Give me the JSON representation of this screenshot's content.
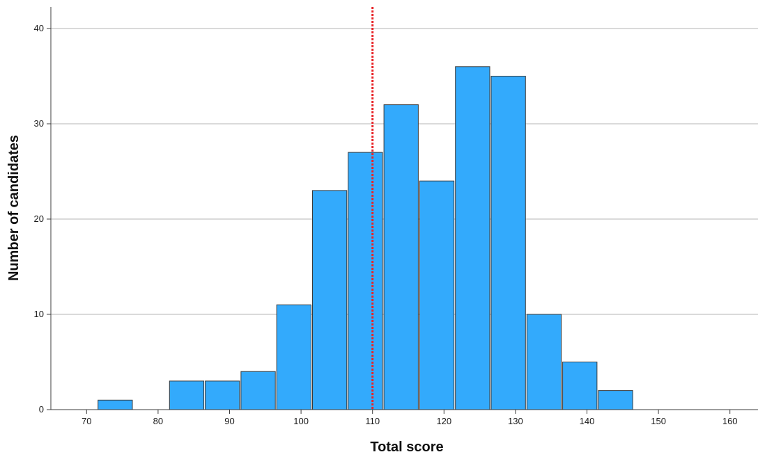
{
  "chart_data": {
    "type": "bar",
    "subtype": "histogram",
    "title": "",
    "xlabel": "Total score",
    "ylabel": "Number of candidates",
    "xlim": [
      65,
      165
    ],
    "ylim": [
      0,
      42
    ],
    "x_ticks": [
      70,
      80,
      90,
      100,
      110,
      120,
      130,
      140,
      150,
      160
    ],
    "y_ticks": [
      0,
      10,
      20,
      30,
      40
    ],
    "bin_width": 5,
    "bins": [
      {
        "start": 71.5,
        "end": 76.5,
        "value": 1
      },
      {
        "start": 81.5,
        "end": 86.5,
        "value": 3
      },
      {
        "start": 86.5,
        "end": 91.5,
        "value": 3
      },
      {
        "start": 91.5,
        "end": 96.5,
        "value": 4
      },
      {
        "start": 96.5,
        "end": 101.5,
        "value": 11
      },
      {
        "start": 101.5,
        "end": 106.5,
        "value": 23
      },
      {
        "start": 106.5,
        "end": 111.5,
        "value": 27
      },
      {
        "start": 111.5,
        "end": 116.5,
        "value": 32
      },
      {
        "start": 116.5,
        "end": 121.5,
        "value": 24
      },
      {
        "start": 121.5,
        "end": 126.5,
        "value": 36
      },
      {
        "start": 126.5,
        "end": 131.5,
        "value": 35
      },
      {
        "start": 131.5,
        "end": 136.5,
        "value": 10
      },
      {
        "start": 136.5,
        "end": 141.5,
        "value": 5
      },
      {
        "start": 141.5,
        "end": 146.5,
        "value": 2
      }
    ],
    "reference_line": {
      "x": 110,
      "style": "dotted",
      "color": "#e8262a"
    },
    "grid": {
      "horizontal": true,
      "vertical": false
    },
    "legend": "none"
  },
  "colors": {
    "bar_fill": "#33aafc",
    "bar_stroke": "#3a3a3a",
    "grid": "#b4b4b4",
    "axis": "#3c3c3c",
    "reference_line": "#e8262a"
  }
}
